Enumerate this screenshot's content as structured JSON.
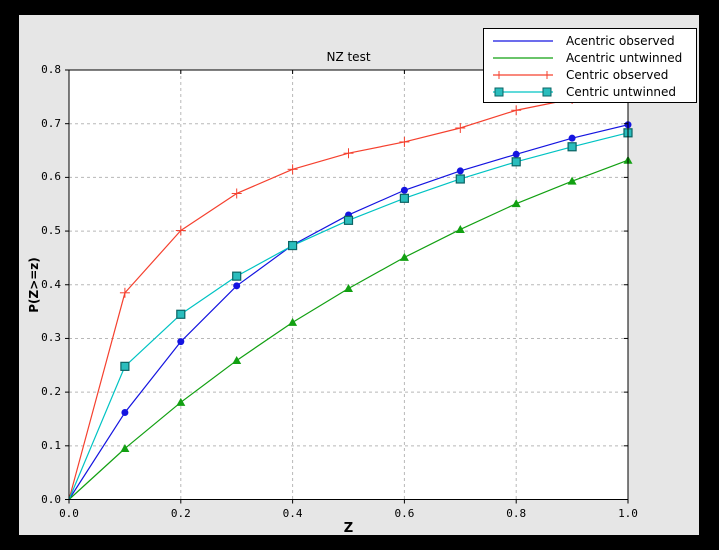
{
  "colors": {
    "outer_frame": "#000000",
    "figure_background": "#e6e6e6",
    "plot_background": "#ffffff",
    "grid": "#b8b8b8",
    "spine": "#000000",
    "text": "#000000"
  },
  "chart_data": {
    "type": "line",
    "title": "NZ test",
    "xlabel": "Z",
    "ylabel": "P(Z>=z)",
    "xlim": [
      0.0,
      1.0
    ],
    "ylim": [
      0.0,
      0.8
    ],
    "grid": true,
    "legend_position": "upper right",
    "x_tick_labels": [
      "0.0",
      "0.2",
      "0.4",
      "0.6",
      "0.8",
      "1.0"
    ],
    "y_tick_labels": [
      "0.0",
      "0.1",
      "0.2",
      "0.3",
      "0.4",
      "0.5",
      "0.6",
      "0.7",
      "0.8"
    ],
    "x": [
      0.0,
      0.1,
      0.2,
      0.3,
      0.4,
      0.5,
      0.6,
      0.7,
      0.8,
      0.9,
      1.0
    ],
    "series": [
      {
        "name": "Acentric observed",
        "color": "#1414e0",
        "marker": "circle",
        "legend_marker": "none",
        "values": [
          0.0,
          0.162,
          0.294,
          0.398,
          0.474,
          0.53,
          0.576,
          0.612,
          0.643,
          0.673,
          0.698
        ]
      },
      {
        "name": "Acentric untwinned",
        "color": "#12a012",
        "marker": "triangle",
        "legend_marker": "none",
        "values": [
          0.0,
          0.095,
          0.181,
          0.259,
          0.33,
          0.393,
          0.451,
          0.503,
          0.551,
          0.593,
          0.632
        ]
      },
      {
        "name": "Centric observed",
        "color": "#f5402e",
        "marker": "plus",
        "legend_marker": "plus",
        "values": [
          0.0,
          0.385,
          0.501,
          0.57,
          0.615,
          0.645,
          0.666,
          0.692,
          0.725,
          0.746,
          0.766
        ]
      },
      {
        "name": "Centric untwinned",
        "color": "#00c3c3",
        "marker": "square",
        "legend_marker": "square",
        "marker_fill": "#2abdbd",
        "marker_edge": "#0b6363",
        "values": [
          0.0,
          0.248,
          0.345,
          0.416,
          0.473,
          0.52,
          0.561,
          0.597,
          0.629,
          0.657,
          0.683
        ]
      }
    ]
  }
}
